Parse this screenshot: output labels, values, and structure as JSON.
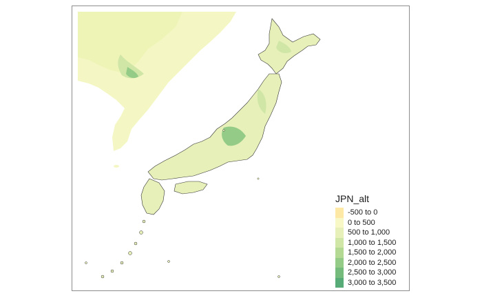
{
  "map": {
    "legend": {
      "title": "JPN_alt",
      "items": [
        {
          "label": "-500 to 0",
          "color": "#fde8a6"
        },
        {
          "label": "0 to 500",
          "color": "#f7f8c5"
        },
        {
          "label": "500 to 1,000",
          "color": "#e6f0b8"
        },
        {
          "label": "1,000 to 1,500",
          "color": "#cfe6a7"
        },
        {
          "label": "1,500 to 2,000",
          "color": "#b3d993"
        },
        {
          "label": "2,000 to 2,500",
          "color": "#94cb86"
        },
        {
          "label": "2,500 to 3,000",
          "color": "#74bb7c"
        },
        {
          "label": "3,000 to 3,500",
          "color": "#56ab76"
        }
      ]
    }
  }
}
